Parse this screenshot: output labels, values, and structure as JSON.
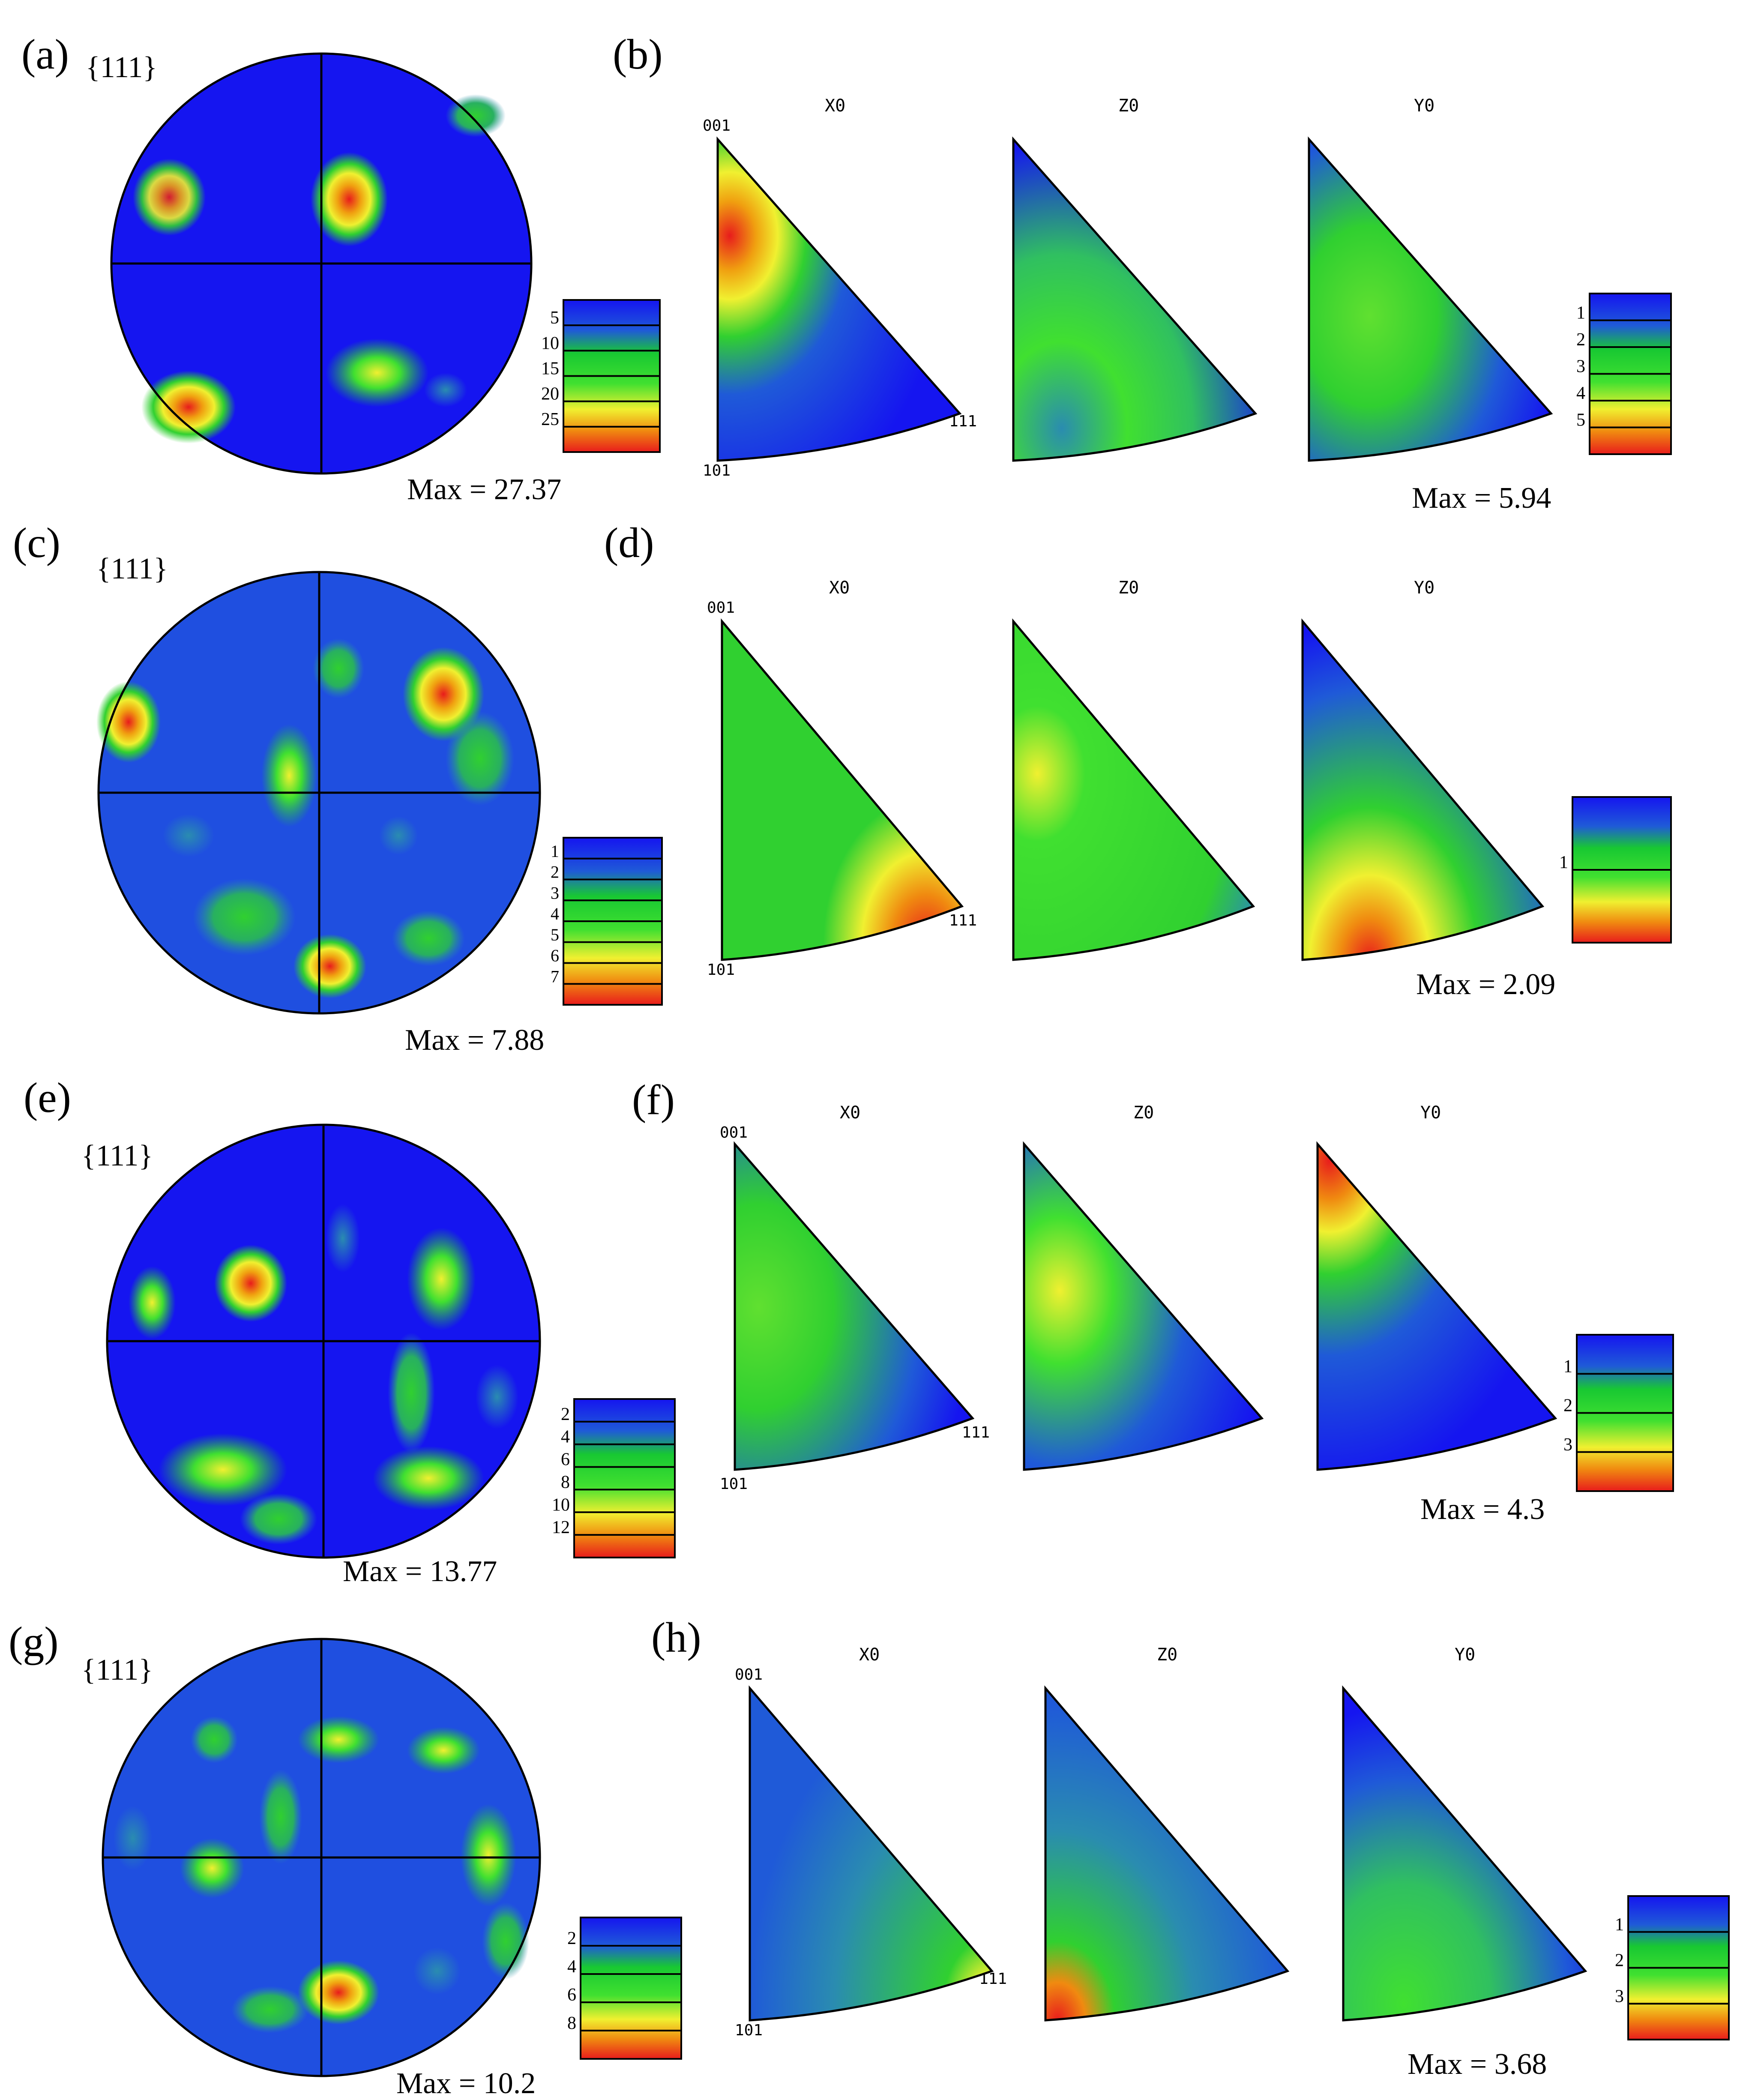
{
  "colors": {
    "blue": "#1515f0",
    "blue2": "#1f5ad8",
    "teal": "#2a8cb0",
    "green": "#18c832",
    "green2": "#60e030",
    "yellow": "#f0f030",
    "orange": "#f08a10",
    "red": "#e81c1c",
    "ink": "#000000"
  },
  "panels": [
    {
      "label": "(a)",
      "pf_title": "{111}",
      "pf_max": "Max = 27.37",
      "pf_scale": [
        "5",
        "10",
        "15",
        "20",
        "25"
      ],
      "ipf_label": "(b)",
      "ipf_titles": [
        "X0",
        "Z0",
        "Y0"
      ],
      "ipf_corners": [
        "001",
        "111",
        "101"
      ],
      "ipf_max": "Max = 5.94",
      "ipf_scale": [
        "1",
        "2",
        "3",
        "4",
        "5"
      ]
    },
    {
      "label": "(c)",
      "pf_title": "{111}",
      "pf_max": "Max = 7.88",
      "pf_scale": [
        "1",
        "2",
        "3",
        "4",
        "5",
        "6",
        "7"
      ],
      "ipf_label": "(d)",
      "ipf_titles": [
        "X0",
        "Z0",
        "Y0"
      ],
      "ipf_corners": [
        "001",
        "111",
        "101"
      ],
      "ipf_max": "Max = 2.09",
      "ipf_scale": [
        "1"
      ]
    },
    {
      "label": "(e)",
      "pf_title": "{111}",
      "pf_max": "Max = 13.77",
      "pf_scale": [
        "2",
        "4",
        "6",
        "8",
        "10",
        "12"
      ],
      "ipf_label": "(f)",
      "ipf_titles": [
        "X0",
        "Z0",
        "Y0"
      ],
      "ipf_corners": [
        "001",
        "111",
        "101"
      ],
      "ipf_max": "Max = 4.3",
      "ipf_scale": [
        "1",
        "2",
        "3"
      ]
    },
    {
      "label": "(g)",
      "pf_title": "{111}",
      "pf_max": "Max = 10.2",
      "pf_scale": [
        "2",
        "4",
        "6",
        "8"
      ],
      "ipf_label": "(h)",
      "ipf_titles": [
        "X0",
        "Z0",
        "Y0"
      ],
      "ipf_corners": [
        "001",
        "111",
        "101"
      ],
      "ipf_max": "Max = 3.68",
      "ipf_scale": [
        "1",
        "2",
        "3"
      ]
    }
  ]
}
